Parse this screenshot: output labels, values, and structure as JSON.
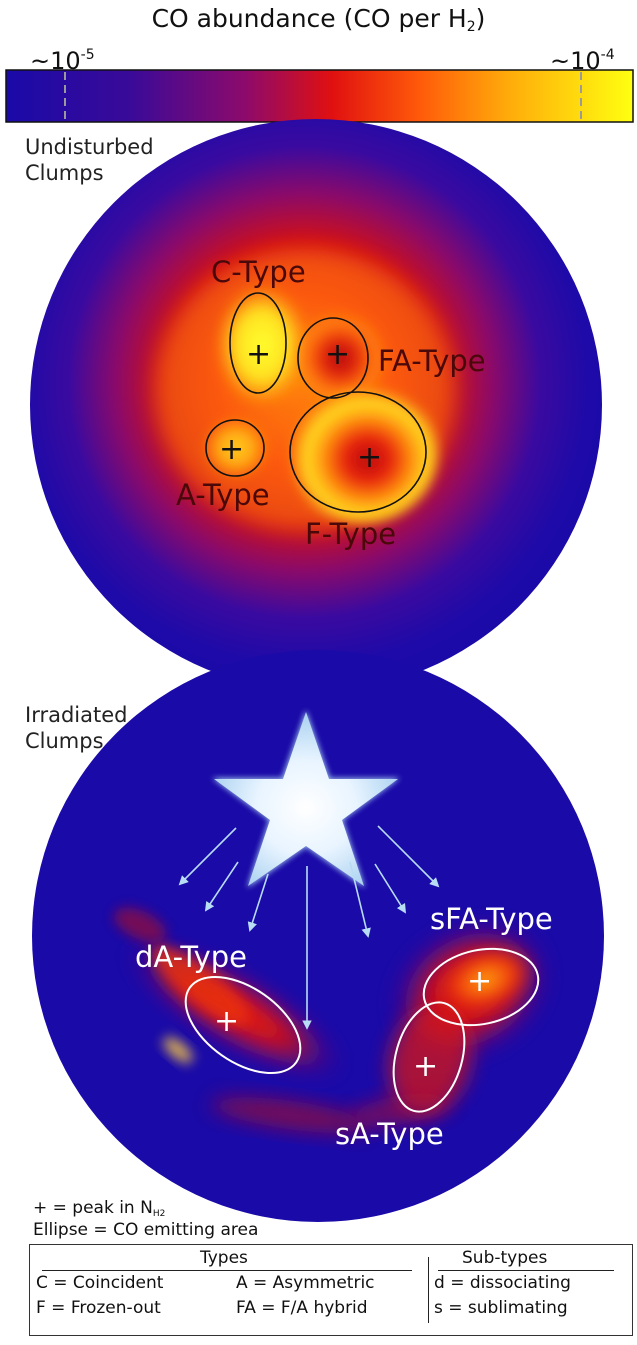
{
  "colorbar": {
    "title_main": "CO abundance (CO per H",
    "title_sub": "2",
    "title_close": ")",
    "tick_low_base": "~10",
    "tick_low_exp": "-5",
    "tick_high_base": "~10",
    "tick_high_exp": "-4",
    "colors": [
      "#1a0aa8",
      "#d01010",
      "#ffff00"
    ]
  },
  "undisturbed": {
    "label_line1": "Undisturbed",
    "label_line2": "Clumps",
    "types": {
      "c": "C-Type",
      "fa": "FA-Type",
      "a": "A-Type",
      "f": "F-Type"
    },
    "peak_marker": "+"
  },
  "irradiated": {
    "label_line1": "Irradiated",
    "label_line2": "Clumps",
    "types": {
      "da": "dA-Type",
      "sfa": "sFA-Type",
      "sa": "sA-Type"
    },
    "peak_marker": "+"
  },
  "legend": {
    "note1_main": "+ = peak in N",
    "note1_sub": "H2",
    "note2": "Ellipse = CO emitting area",
    "types_header": "Types",
    "subtypes_header": "Sub-types",
    "types": [
      "C = Coincident",
      "A = Asymmetric",
      "F = Frozen-out",
      "FA = F/A hybrid"
    ],
    "subtypes": [
      "d = dissociating",
      "s = sublimating"
    ]
  }
}
